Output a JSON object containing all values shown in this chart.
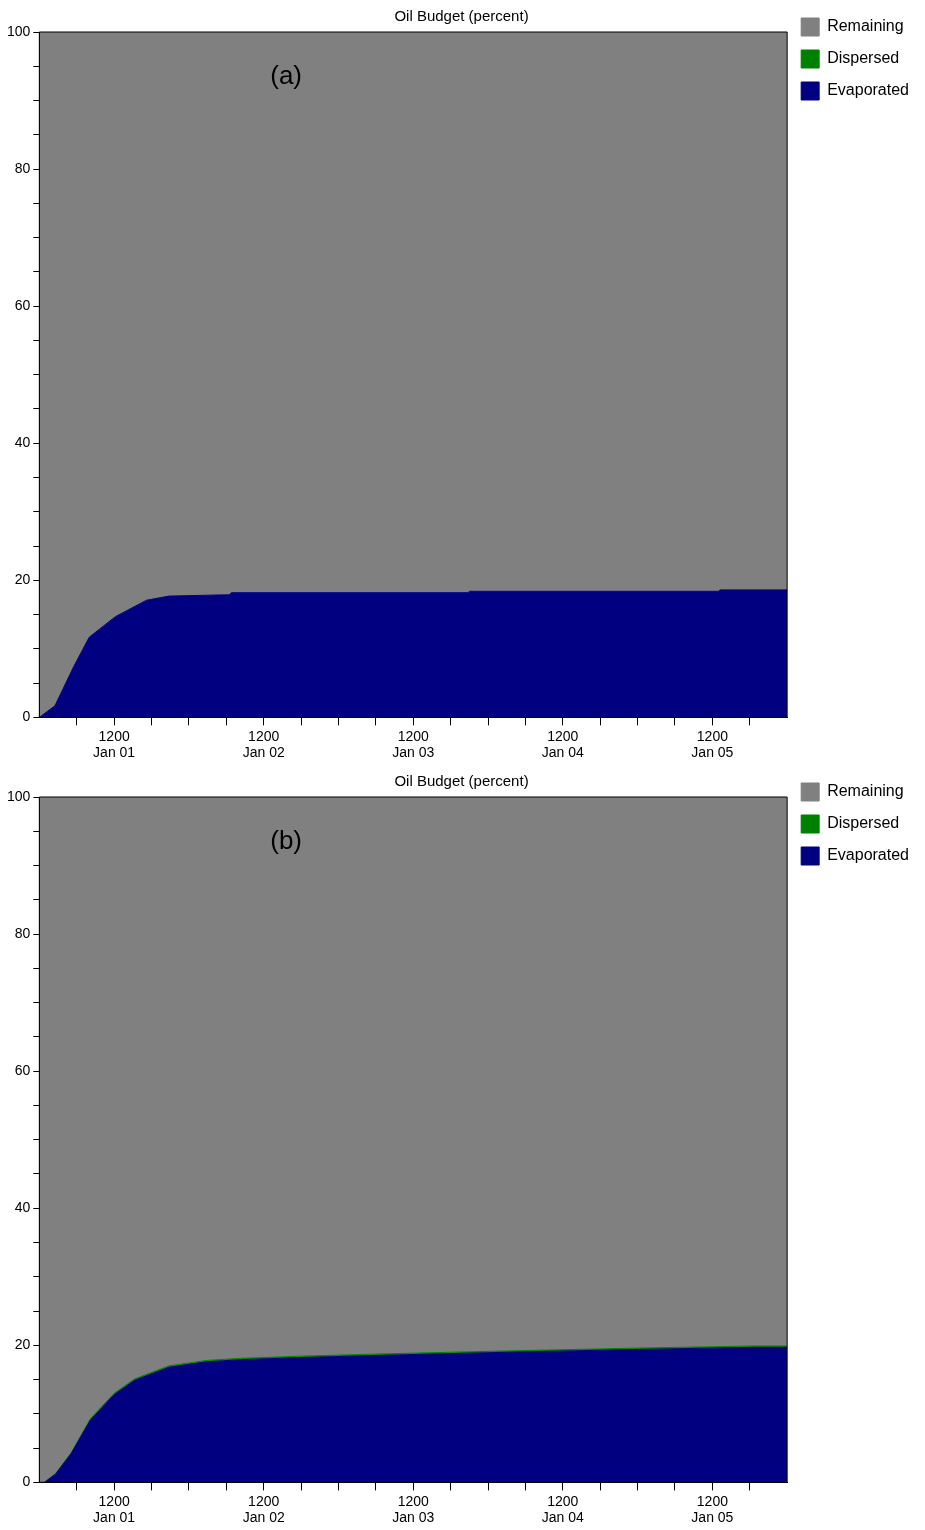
{
  "chart_data": [
    {
      "type": "area",
      "title": "Oil Budget (percent)",
      "annotations": [
        "(a)"
      ],
      "stacked": true,
      "legend": "right",
      "grid": false,
      "x": [
        "--01-01T00:00",
        "--01-01T02:30",
        "--01-01T05:30",
        "--01-01T08:00",
        "--01-01T12:12",
        "--01-01T17:12",
        "--01-01T20:48",
        "--01-02T06:30",
        "--01-02T06:48",
        "--01-03T20:48",
        "--01-03T21:00",
        "--01-05T13:00",
        "--01-05T13:12",
        "--01-06T00:00"
      ],
      "series": [
        {
          "name": "Evaporated",
          "color": "#000080",
          "values": [
            0,
            1.7,
            7.4,
            11.7,
            14.7,
            17.1,
            17.7,
            17.9,
            18.2,
            18.2,
            18.4,
            18.4,
            18.6,
            18.6
          ]
        },
        {
          "name": "Dispersed",
          "color": "#008000",
          "values": [
            null,
            null,
            null,
            null,
            null,
            null,
            null,
            null,
            null,
            null,
            null,
            null,
            null,
            null
          ]
        },
        {
          "name": "Remaining",
          "color": "#808080",
          "values": [
            100,
            98.3,
            92.6,
            88.3,
            85.3,
            82.9,
            82.3,
            82.1,
            81.8,
            81.8,
            81.6,
            81.6,
            81.4,
            81.4
          ]
        }
      ],
      "xlim": [
        "--01-01T00:00",
        "--01-06T00:00"
      ],
      "xticks": [
        {
          "value": "--01-01T06:00",
          "label": null
        },
        {
          "value": "--01-01T12:00",
          "label": "1200\nJan 01"
        },
        {
          "value": "--01-01T18:00",
          "label": null
        },
        {
          "value": "--01-02T00:00",
          "label": null
        },
        {
          "value": "--01-02T06:00",
          "label": null
        },
        {
          "value": "--01-02T12:00",
          "label": "1200\nJan 02"
        },
        {
          "value": "--01-02T18:00",
          "label": null
        },
        {
          "value": "--01-03T00:00",
          "label": null
        },
        {
          "value": "--01-03T06:00",
          "label": null
        },
        {
          "value": "--01-03T12:00",
          "label": "1200\nJan 03"
        },
        {
          "value": "--01-03T18:00",
          "label": null
        },
        {
          "value": "--01-04T00:00",
          "label": null
        },
        {
          "value": "--01-04T06:00",
          "label": null
        },
        {
          "value": "--01-04T12:00",
          "label": "1200\nJan 04"
        },
        {
          "value": "--01-04T18:00",
          "label": null
        },
        {
          "value": "--01-05T00:00",
          "label": null
        },
        {
          "value": "--01-05T06:00",
          "label": null
        },
        {
          "value": "--01-05T12:00",
          "label": "1200\nJan 05"
        },
        {
          "value": "--01-05T18:00",
          "label": null
        }
      ],
      "ylim": [
        0,
        100
      ],
      "yticks": [
        0,
        {
          "value": 5,
          "label": null
        },
        {
          "value": 10,
          "label": null
        },
        {
          "value": 15,
          "label": null
        },
        20,
        {
          "value": 25,
          "label": null
        },
        {
          "value": 30,
          "label": null
        },
        {
          "value": 35,
          "label": null
        },
        40,
        {
          "value": 45,
          "label": null
        },
        {
          "value": 50,
          "label": null
        },
        {
          "value": 55,
          "label": null
        },
        60,
        {
          "value": 65,
          "label": null
        },
        {
          "value": 70,
          "label": null
        },
        {
          "value": 75,
          "label": null
        },
        80,
        {
          "value": 85,
          "label": null
        },
        {
          "value": 90,
          "label": null
        },
        {
          "value": 95,
          "label": null
        },
        100
      ]
    },
    {
      "type": "area",
      "title": "Oil Budget (percent)",
      "annotations": [
        "(b)"
      ],
      "stacked": true,
      "legend": "right",
      "grid": false,
      "x": [
        "--01-01T00:00",
        "--01-01T00:48",
        "--01-01T02:36",
        "--01-01T05:06",
        "--01-01T08:12",
        "--01-01T12:00",
        "--01-01T15:18",
        "--01-01T20:48",
        "--01-02T02:54",
        "--01-02T08:18",
        "--01-02T17:24",
        "--01-03T05:12",
        "--01-03T18:24",
        "--01-04T08:42",
        "--01-05T00:18",
        "--01-05T18:30",
        "--01-06T00:00"
      ],
      "series": [
        {
          "name": "Evaporated",
          "color": "#000080",
          "values": [
            0,
            0,
            1.2,
            4.2,
            9.1,
            12.8,
            14.9,
            16.8,
            17.6,
            17.9,
            18.2,
            18.5,
            18.8,
            19.1,
            19.4,
            19.7,
            19.7
          ]
        },
        {
          "name": "Dispersed",
          "color": "#008000",
          "values": [
            0,
            0,
            0.1,
            0.1,
            0.2,
            0.2,
            0.2,
            0.2,
            0.2,
            0.2,
            0.2,
            0.2,
            0.2,
            0.2,
            0.2,
            0.2,
            0.2
          ]
        },
        {
          "name": "Remaining",
          "color": "#808080",
          "values": [
            100,
            100,
            98.7,
            95.7,
            90.7,
            87,
            84.9,
            83,
            82.2,
            81.9,
            81.6,
            81.3,
            81,
            80.7,
            80.4,
            80.1,
            80.1
          ]
        }
      ],
      "xlim": [
        "--01-01T00:00",
        "--01-06T00:00"
      ],
      "xticks": [
        {
          "value": "--01-01T06:00",
          "label": null
        },
        {
          "value": "--01-01T12:00",
          "label": "1200\nJan 01"
        },
        {
          "value": "--01-01T18:00",
          "label": null
        },
        {
          "value": "--01-02T00:00",
          "label": null
        },
        {
          "value": "--01-02T06:00",
          "label": null
        },
        {
          "value": "--01-02T12:00",
          "label": "1200\nJan 02"
        },
        {
          "value": "--01-02T18:00",
          "label": null
        },
        {
          "value": "--01-03T00:00",
          "label": null
        },
        {
          "value": "--01-03T06:00",
          "label": null
        },
        {
          "value": "--01-03T12:00",
          "label": "1200\nJan 03"
        },
        {
          "value": "--01-03T18:00",
          "label": null
        },
        {
          "value": "--01-04T00:00",
          "label": null
        },
        {
          "value": "--01-04T06:00",
          "label": null
        },
        {
          "value": "--01-04T12:00",
          "label": "1200\nJan 04"
        },
        {
          "value": "--01-04T18:00",
          "label": null
        },
        {
          "value": "--01-05T00:00",
          "label": null
        },
        {
          "value": "--01-05T06:00",
          "label": null
        },
        {
          "value": "--01-05T12:00",
          "label": "1200\nJan 05"
        },
        {
          "value": "--01-05T18:00",
          "label": null
        }
      ],
      "ylim": [
        0,
        100
      ],
      "yticks": [
        0,
        {
          "value": 5,
          "label": null
        },
        {
          "value": 10,
          "label": null
        },
        {
          "value": 15,
          "label": null
        },
        20,
        {
          "value": 25,
          "label": null
        },
        {
          "value": 30,
          "label": null
        },
        {
          "value": 35,
          "label": null
        },
        40,
        {
          "value": 45,
          "label": null
        },
        {
          "value": 50,
          "label": null
        },
        {
          "value": 55,
          "label": null
        },
        60,
        {
          "value": 65,
          "label": null
        },
        {
          "value": 70,
          "label": null
        },
        {
          "value": 75,
          "label": null
        },
        80,
        {
          "value": 85,
          "label": null
        },
        {
          "value": 90,
          "label": null
        },
        {
          "value": 95,
          "label": null
        },
        100
      ]
    }
  ]
}
